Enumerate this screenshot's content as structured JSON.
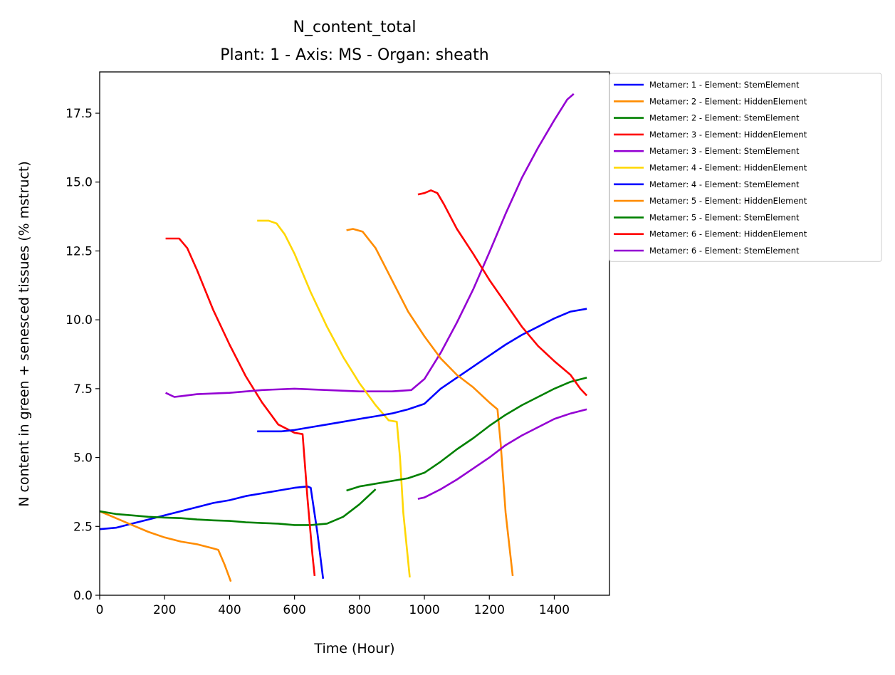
{
  "title": "N_content_total",
  "subtitle": "Plant: 1 - Axis: MS - Organ: sheath",
  "chart_data": {
    "type": "line",
    "title": "N_content_total",
    "subtitle": "Plant: 1 - Axis: MS - Organ: sheath",
    "xlabel": "Time (Hour)",
    "ylabel": "N content in green + senesced tissues (% mstruct)",
    "xlim": [
      0,
      1570
    ],
    "ylim": [
      0,
      19
    ],
    "xticks": [
      0,
      200,
      400,
      600,
      800,
      1000,
      1200,
      1400
    ],
    "yticks": [
      0.0,
      2.5,
      5.0,
      7.5,
      10.0,
      12.5,
      15.0,
      17.5
    ],
    "xtick_labels": [
      "0",
      "200",
      "400",
      "600",
      "800",
      "1000",
      "1200",
      "1400"
    ],
    "ytick_labels": [
      "0.0",
      "2.5",
      "5.0",
      "7.5",
      "10.0",
      "12.5",
      "15.0",
      "17.5"
    ],
    "grid": false,
    "legend_position": "outside-right-top",
    "series": [
      {
        "name": "Metamer: 1 - Element: StemElement",
        "color": "#0000ff",
        "x": [
          0,
          50,
          100,
          150,
          200,
          250,
          300,
          350,
          400,
          450,
          500,
          550,
          600,
          640,
          650,
          670,
          688
        ],
        "y": [
          2.4,
          2.45,
          2.6,
          2.75,
          2.9,
          3.05,
          3.2,
          3.35,
          3.45,
          3.6,
          3.7,
          3.8,
          3.9,
          3.95,
          3.9,
          2.3,
          0.6
        ]
      },
      {
        "name": "Metamer: 2 - Element: HiddenElement",
        "color": "#ff8c00",
        "x": [
          0,
          50,
          100,
          150,
          200,
          250,
          300,
          350,
          365,
          385,
          404
        ],
        "y": [
          3.05,
          2.8,
          2.55,
          2.3,
          2.1,
          1.95,
          1.85,
          1.7,
          1.65,
          1.1,
          0.5
        ]
      },
      {
        "name": "Metamer: 2 - Element: StemElement",
        "color": "#008000",
        "x": [
          0,
          50,
          100,
          150,
          200,
          250,
          300,
          350,
          400,
          450,
          500,
          550,
          600,
          650,
          700,
          750,
          800,
          850
        ],
        "y": [
          3.05,
          2.95,
          2.9,
          2.85,
          2.82,
          2.8,
          2.75,
          2.72,
          2.7,
          2.65,
          2.62,
          2.6,
          2.55,
          2.55,
          2.6,
          2.85,
          3.3,
          3.85
        ]
      },
      {
        "name": "Metamer: 3 - Element: HiddenElement",
        "color": "#ff0000",
        "x": [
          203,
          220,
          245,
          270,
          300,
          350,
          400,
          450,
          500,
          550,
          600,
          625,
          640,
          655,
          662
        ],
        "y": [
          12.95,
          12.95,
          12.95,
          12.6,
          11.8,
          10.35,
          9.1,
          7.95,
          7.0,
          6.2,
          5.9,
          5.85,
          3.5,
          1.5,
          0.7
        ]
      },
      {
        "name": "Metamer: 3 - Element: StemElement",
        "color": "#9400d3",
        "x": [
          203,
          230,
          300,
          400,
          500,
          600,
          700,
          800,
          900,
          960,
          1000,
          1050,
          1100,
          1150,
          1200,
          1250,
          1300,
          1350,
          1400,
          1440,
          1460
        ],
        "y": [
          7.35,
          7.2,
          7.3,
          7.35,
          7.45,
          7.5,
          7.45,
          7.4,
          7.4,
          7.45,
          7.85,
          8.8,
          9.9,
          11.1,
          12.45,
          13.85,
          15.15,
          16.25,
          17.25,
          18.0,
          18.2
        ]
      },
      {
        "name": "Metamer: 4 - Element: HiddenElement",
        "color": "#ffd700",
        "x": [
          485,
          520,
          545,
          570,
          600,
          650,
          700,
          750,
          800,
          850,
          890,
          915,
          925,
          935,
          955
        ],
        "y": [
          13.6,
          13.6,
          13.5,
          13.1,
          12.4,
          11.0,
          9.75,
          8.65,
          7.7,
          6.9,
          6.35,
          6.3,
          5.0,
          3.0,
          0.65
        ]
      },
      {
        "name": "Metamer: 4 - Element: StemElement",
        "color": "#0000ff",
        "x": [
          485,
          520,
          560,
          600,
          650,
          700,
          750,
          800,
          850,
          900,
          950,
          1000,
          1050,
          1100,
          1150,
          1200,
          1250,
          1300,
          1350,
          1400,
          1450,
          1500
        ],
        "y": [
          5.95,
          5.95,
          5.95,
          6.0,
          6.1,
          6.2,
          6.3,
          6.4,
          6.5,
          6.6,
          6.75,
          6.95,
          7.5,
          7.9,
          8.3,
          8.7,
          9.1,
          9.45,
          9.75,
          10.05,
          10.3,
          10.4
        ]
      },
      {
        "name": "Metamer: 5 - Element: HiddenElement",
        "color": "#ff8c00",
        "x": [
          760,
          780,
          810,
          850,
          900,
          950,
          1000,
          1050,
          1100,
          1150,
          1200,
          1225,
          1235,
          1250,
          1272
        ],
        "y": [
          13.25,
          13.3,
          13.2,
          12.6,
          11.45,
          10.3,
          9.4,
          8.6,
          8.0,
          7.55,
          7.0,
          6.75,
          5.5,
          3.0,
          0.7
        ]
      },
      {
        "name": "Metamer: 5 - Element: StemElement",
        "color": "#008000",
        "x": [
          760,
          800,
          850,
          900,
          950,
          1000,
          1050,
          1100,
          1150,
          1200,
          1250,
          1300,
          1350,
          1400,
          1450,
          1500
        ],
        "y": [
          3.8,
          3.95,
          4.05,
          4.15,
          4.25,
          4.45,
          4.85,
          5.3,
          5.7,
          6.15,
          6.55,
          6.9,
          7.2,
          7.5,
          7.75,
          7.9
        ]
      },
      {
        "name": "Metamer: 6 - Element: HiddenElement",
        "color": "#ff0000",
        "x": [
          980,
          1000,
          1020,
          1040,
          1060,
          1100,
          1150,
          1200,
          1250,
          1300,
          1350,
          1400,
          1450,
          1480,
          1500
        ],
        "y": [
          14.55,
          14.6,
          14.7,
          14.6,
          14.2,
          13.3,
          12.4,
          11.45,
          10.6,
          9.75,
          9.05,
          8.5,
          8.0,
          7.5,
          7.25
        ]
      },
      {
        "name": "Metamer: 6 - Element: StemElement",
        "color": "#9400d3",
        "x": [
          980,
          1000,
          1050,
          1100,
          1150,
          1200,
          1250,
          1300,
          1350,
          1400,
          1450,
          1500
        ],
        "y": [
          3.5,
          3.55,
          3.85,
          4.2,
          4.6,
          5.0,
          5.45,
          5.8,
          6.1,
          6.4,
          6.6,
          6.75
        ]
      }
    ]
  }
}
